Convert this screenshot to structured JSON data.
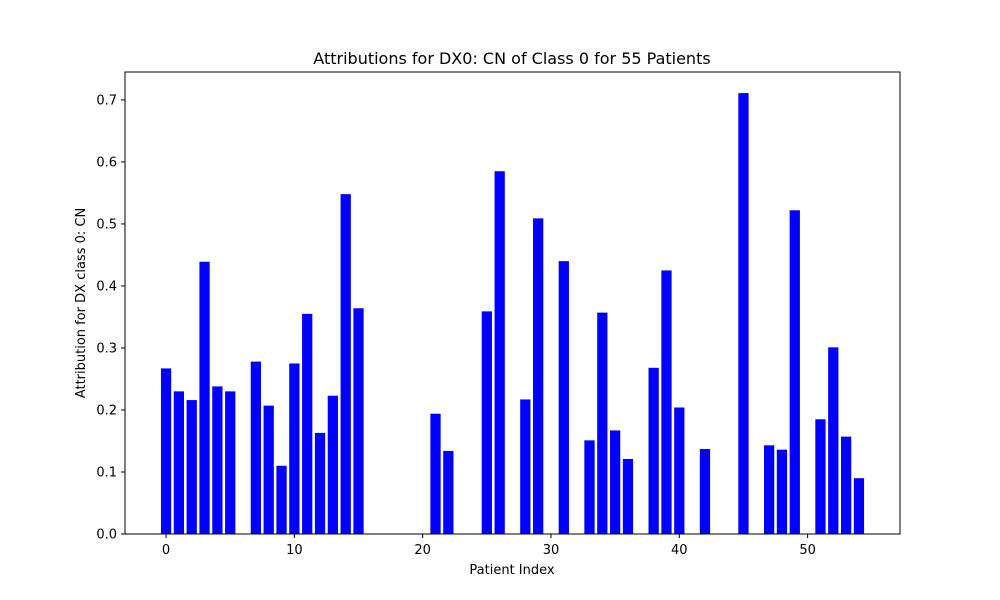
{
  "chart_data": {
    "type": "bar",
    "title": "Attributions for DX0: CN of Class 0 for 55 Patients",
    "xlabel": "Patient Index",
    "ylabel": "Attribution for DX class 0: CN",
    "bar_color": "#0000ff",
    "xlim": [
      -3.2,
      57.2
    ],
    "ylim": [
      0,
      0.745
    ],
    "xticks": [
      0,
      10,
      20,
      30,
      40,
      50
    ],
    "yticks": [
      0.0,
      0.1,
      0.2,
      0.3,
      0.4,
      0.5,
      0.6,
      0.7
    ],
    "ytick_labels": [
      "0.0",
      "0.1",
      "0.2",
      "0.3",
      "0.4",
      "0.5",
      "0.6",
      "0.7"
    ],
    "grid": false,
    "x": [
      0,
      1,
      2,
      3,
      4,
      5,
      6,
      7,
      8,
      9,
      10,
      11,
      12,
      13,
      14,
      15,
      16,
      17,
      18,
      19,
      20,
      21,
      22,
      23,
      24,
      25,
      26,
      27,
      28,
      29,
      30,
      31,
      32,
      33,
      34,
      35,
      36,
      37,
      38,
      39,
      40,
      41,
      42,
      43,
      44,
      45,
      46,
      47,
      48,
      49,
      50,
      51,
      52,
      53,
      54
    ],
    "values": [
      0.267,
      0.23,
      0.216,
      0.439,
      0.238,
      0.23,
      0,
      0.278,
      0.207,
      0.11,
      0.275,
      0.355,
      0.163,
      0.223,
      0.548,
      0.364,
      0,
      0,
      0,
      0,
      0,
      0.194,
      0.134,
      0,
      0,
      0.359,
      0.585,
      0,
      0.217,
      0.509,
      0,
      0.44,
      0,
      0.151,
      0.357,
      0.167,
      0.121,
      0,
      0.268,
      0.425,
      0.204,
      0,
      0.137,
      0,
      0,
      0.711,
      0,
      0.143,
      0.136,
      0.522,
      0,
      0.185,
      0.301,
      0.157,
      0.09
    ]
  }
}
